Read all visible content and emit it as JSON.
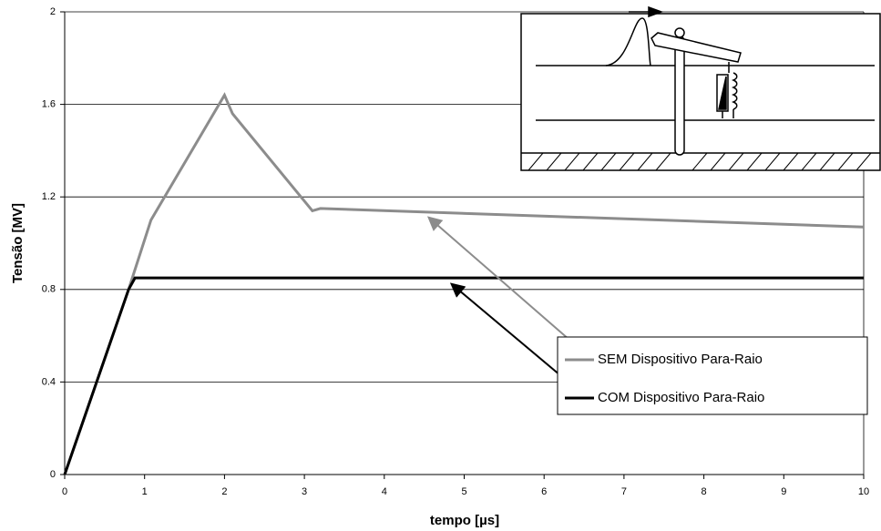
{
  "chart_data": {
    "type": "line",
    "x_label": "tempo [µs]",
    "y_label": "Tensão [MV]",
    "xlim": [
      0,
      10
    ],
    "xticks": [
      0,
      1,
      2,
      3,
      4,
      5,
      6,
      7,
      8,
      9,
      10
    ],
    "ylim": [
      0,
      2
    ],
    "yticks": [
      0,
      0.4,
      0.8,
      1.2,
      1.6,
      2
    ],
    "grid": true,
    "series": [
      {
        "name": "SEM Dispositivo Para-Raio",
        "color": "#8c8c8c",
        "x": [
          0,
          0.8,
          1.08,
          2,
          2.1,
          3.1,
          3.2,
          10
        ],
        "values": [
          0,
          0.8,
          1.1,
          1.64,
          1.56,
          1.14,
          1.15,
          1.07
        ]
      },
      {
        "name": "COM Dispositivo Para-Raio",
        "color": "#000000",
        "x": [
          0,
          0.8,
          0.88,
          10
        ],
        "values": [
          0,
          0.8,
          0.85,
          0.85
        ]
      }
    ]
  }
}
